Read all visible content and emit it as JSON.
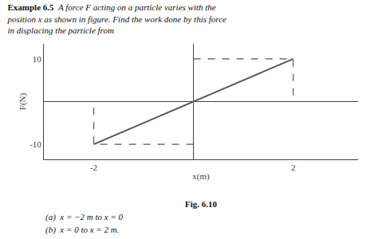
{
  "chart_data": {
    "type": "line",
    "title": "Example 6.5",
    "subtitle": "A force F acting on a particle varies with the\nposition x as shown in figure. Find the work done by this force\nin displacing the particle from",
    "xlabel": "x(m)",
    "ylabel": "F(N)",
    "x": [
      -2,
      0,
      2
    ],
    "values": [
      -10,
      0,
      10
    ],
    "color": "#555555",
    "line_style": "solid",
    "xlim": [
      -3.0,
      3.3
    ],
    "xticks": [
      -2,
      2
    ],
    "ylim": [
      -13.5,
      13.5
    ],
    "yticks": [
      -10,
      10
    ],
    "grid": false,
    "annotations": [
      "Fig. 6.10",
      "(a)  x = −2 m to x = 0",
      "(b)  x = 0 to x = 2 m."
    ]
  }
}
